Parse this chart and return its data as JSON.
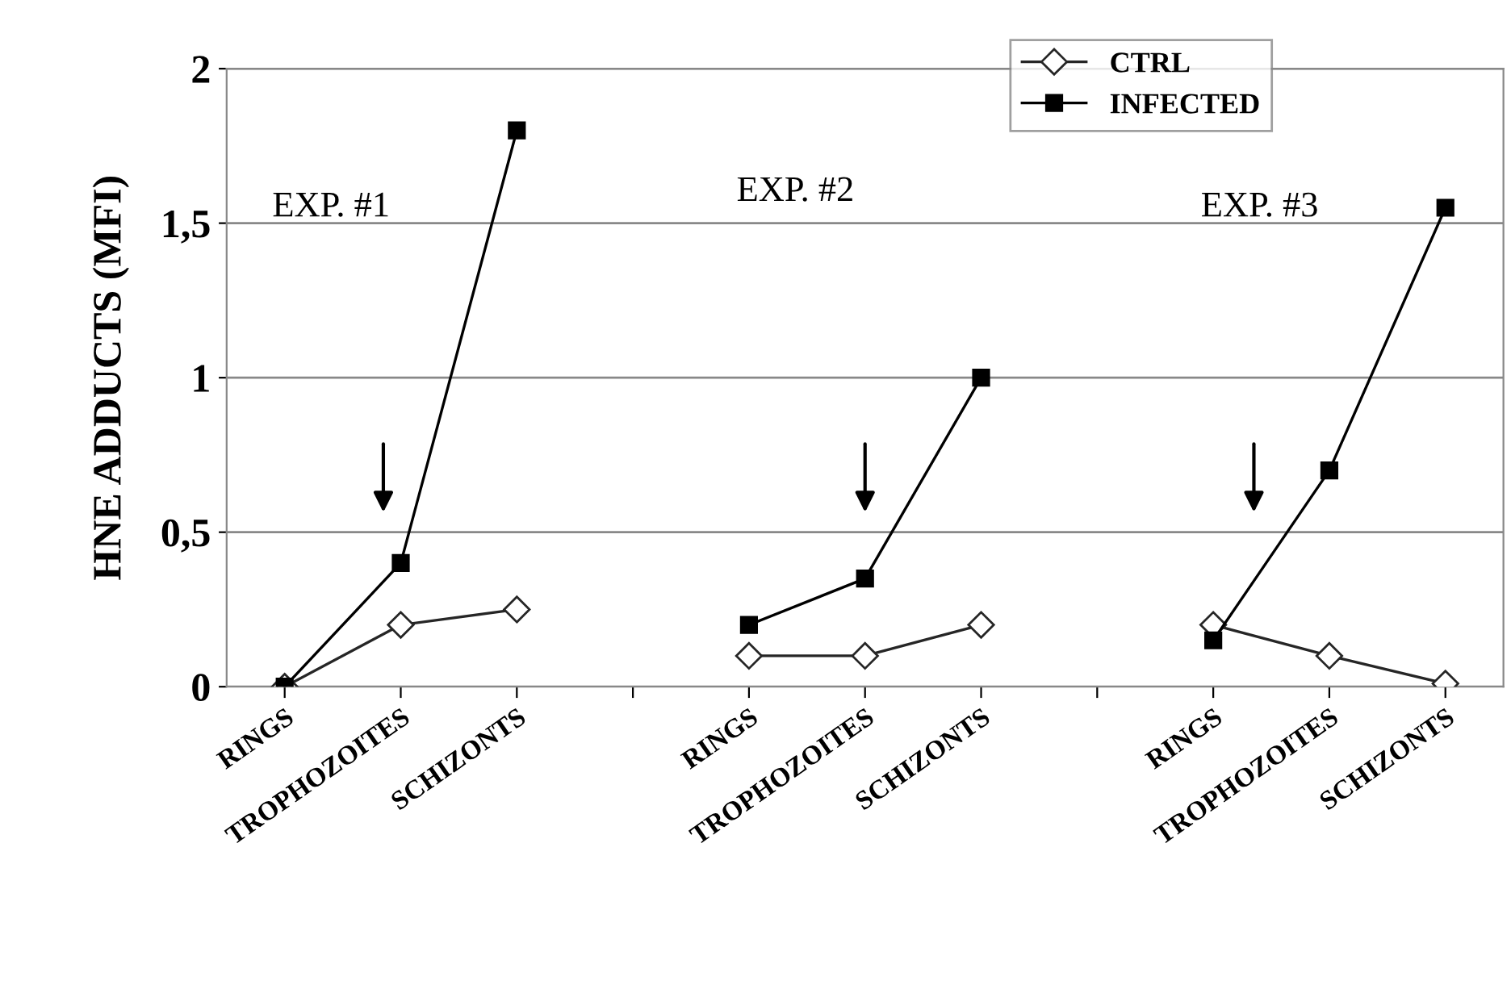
{
  "chart_data": {
    "type": "line",
    "ylabel": "HNE ADDUCTS (MFI)",
    "categories": [
      "RINGS",
      "TROPHOZOITES",
      "SCHIZONTS",
      null,
      "RINGS",
      "TROPHOZOITES",
      "SCHIZONTS",
      null,
      "RINGS",
      "TROPHOZOITES",
      "SCHIZONTS"
    ],
    "series": [
      {
        "name": "CTRL",
        "color": "#262626",
        "marker": "diamond",
        "values": [
          0,
          0.2,
          0.25,
          null,
          0.1,
          0.1,
          0.2,
          null,
          0.2,
          0.1,
          0.01
        ]
      },
      {
        "name": "INFECTED",
        "color": "#000000",
        "marker": "square",
        "values": [
          0,
          0.4,
          1.8,
          null,
          0.2,
          0.35,
          1.0,
          null,
          0.15,
          0.7,
          1.55
        ]
      }
    ],
    "ylim": [
      0,
      2
    ],
    "yticks": [
      0,
      {
        "value": 0.5,
        "label": "0,5"
      },
      1,
      {
        "value": 1.5,
        "label": "1,5"
      },
      2
    ],
    "grid": "y",
    "legend": "top right",
    "line_style": "solid",
    "annotations": [
      "EXP. #1",
      "EXP. #2",
      "EXP. #3"
    ]
  }
}
